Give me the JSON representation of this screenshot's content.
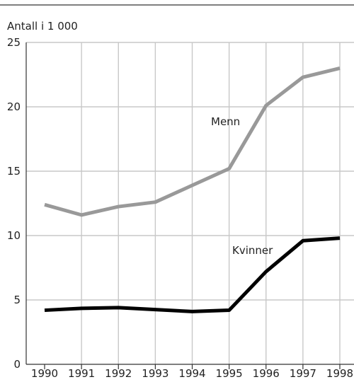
{
  "chart_data": {
    "type": "line",
    "ylabel": "Antall i 1 000",
    "x": [
      "1990",
      "1991",
      "1992",
      "1993",
      "1994",
      "1995",
      "1996",
      "1997",
      "1998"
    ],
    "ylim": [
      0,
      25
    ],
    "yticks": [
      "0",
      "5",
      "10",
      "15",
      "20",
      "25"
    ],
    "grid": true,
    "series": [
      {
        "name": "Menn",
        "color": "#999999",
        "values": [
          12.4,
          11.6,
          12.25,
          12.6,
          13.9,
          15.2,
          20.1,
          22.3,
          23.0
        ]
      },
      {
        "name": "Kvinner",
        "color": "#000000",
        "values": [
          4.2,
          4.35,
          4.4,
          4.25,
          4.1,
          4.2,
          7.2,
          9.6,
          9.8
        ]
      }
    ]
  }
}
